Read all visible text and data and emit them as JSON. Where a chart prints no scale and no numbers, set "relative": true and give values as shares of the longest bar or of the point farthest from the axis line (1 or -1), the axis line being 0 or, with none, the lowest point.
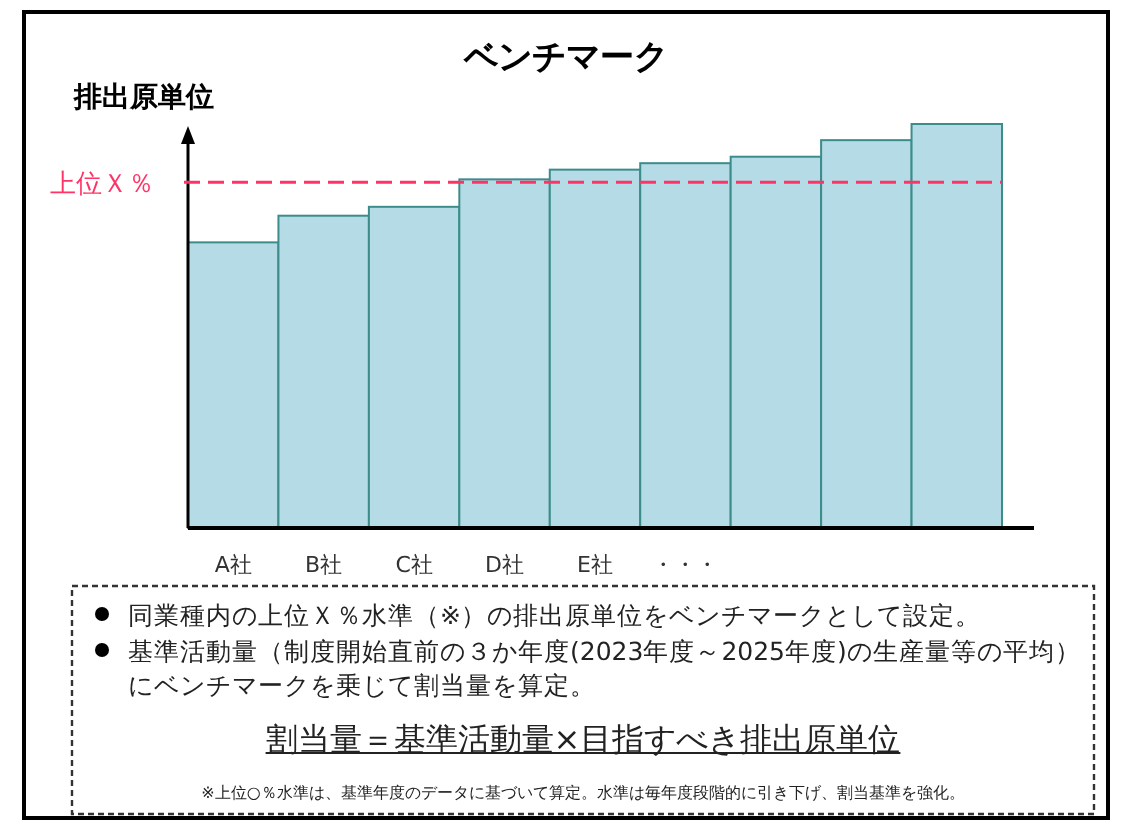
{
  "chart_data": {
    "type": "bar",
    "title": "ベンチマーク",
    "ylabel": "排出原単位",
    "categories": [
      "A社",
      "B社",
      "C社",
      "D社",
      "E社",
      "・・・",
      null,
      null,
      null
    ],
    "values": [
      0.707,
      0.773,
      0.795,
      0.863,
      0.887,
      0.903,
      0.919,
      0.96,
      1
    ],
    "color": "#b5dce6",
    "relative": true,
    "ref_lines": [
      {
        "axis": "y",
        "value": 0.856,
        "label": "上位Ｘ％",
        "color": "#ff3366",
        "line_style": "dashed"
      }
    ],
    "annotations": [
      "同業種内の上位Ｘ％水準（※）の排出原単位をベンチマークとして設定。",
      "基準活動量（制度開始直前の３か年度(2023年度～2025年度)の生産量等の平均）にベンチマークを乗じて割当量を算定。",
      "割当量＝基準活動量×目指すべき排出原単位",
      "※上位○％水準は、基準年度のデータに基づいて算定。水準は毎年度段階的に引き下げ、割当基準を強化。"
    ]
  }
}
